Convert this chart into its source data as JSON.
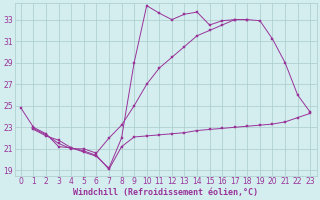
{
  "xlabel": "Windchill (Refroidissement éolien,°C)",
  "bg_color": "#d4eef0",
  "line_color": "#993399",
  "grid_color": "#aacccc",
  "xlim": [
    -0.5,
    23.5
  ],
  "ylim": [
    18.5,
    34.5
  ],
  "yticks": [
    19,
    21,
    23,
    25,
    27,
    29,
    31,
    33
  ],
  "xticks": [
    0,
    1,
    2,
    3,
    4,
    5,
    6,
    7,
    8,
    9,
    10,
    11,
    12,
    13,
    14,
    15,
    16,
    17,
    18,
    19,
    20,
    21,
    22,
    23
  ],
  "tick_fontsize": 5.5,
  "xlabel_fontsize": 6.0,
  "line1_x": [
    0,
    1,
    2,
    3,
    4,
    5,
    6,
    7,
    8,
    9,
    10,
    11,
    12,
    13,
    14,
    15,
    16,
    17,
    18
  ],
  "line1_y": [
    24.8,
    23.0,
    22.4,
    21.2,
    21.1,
    20.7,
    20.3,
    19.2,
    22.0,
    29.0,
    34.3,
    33.6,
    33.0,
    33.5,
    33.7,
    32.5,
    32.9,
    33.0,
    33.0
  ],
  "line2_x": [
    1,
    2,
    3,
    4,
    5,
    6,
    7,
    8,
    9,
    10,
    11,
    12,
    13,
    14,
    15,
    16,
    17,
    18,
    19,
    20,
    21,
    22,
    23
  ],
  "line2_y": [
    22.9,
    22.3,
    21.5,
    21.0,
    21.0,
    20.6,
    22.0,
    23.2,
    25.0,
    27.0,
    28.5,
    29.5,
    30.5,
    31.5,
    32.0,
    32.5,
    33.0,
    33.0,
    32.9,
    31.2,
    29.0,
    26.0,
    24.4
  ],
  "line3_x": [
    1,
    2,
    3,
    4,
    5,
    6,
    7,
    8,
    9,
    10,
    11,
    12,
    13,
    14,
    15,
    16,
    17,
    18,
    19,
    20,
    21,
    22,
    23
  ],
  "line3_y": [
    22.8,
    22.2,
    21.8,
    21.1,
    20.8,
    20.4,
    19.1,
    21.2,
    22.1,
    22.2,
    22.3,
    22.4,
    22.5,
    22.7,
    22.8,
    22.9,
    23.0,
    23.1,
    23.2,
    23.3,
    23.5,
    23.9,
    24.3
  ]
}
